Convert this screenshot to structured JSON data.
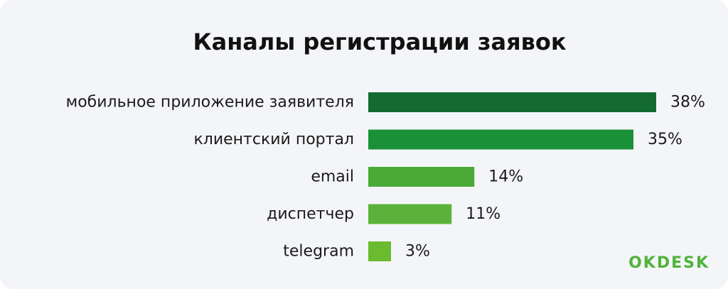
{
  "chart_data": {
    "type": "bar",
    "orientation": "horizontal",
    "title": "Каналы регистрации заявок",
    "categories": [
      "мобильное приложение заявителя",
      "клиентский портал",
      "email",
      "диспетчер",
      "telegram"
    ],
    "values": [
      38,
      35,
      14,
      11,
      3
    ],
    "value_labels": [
      "38%",
      "35%",
      "14%",
      "11%",
      "3%"
    ],
    "colors": [
      "#136b31",
      "#1a9139",
      "#4aaa35",
      "#5bb23a",
      "#6abb2f"
    ],
    "xlim": [
      0,
      38
    ],
    "grid": false,
    "legend": "none"
  },
  "brand": {
    "logo_text": "OKDESK",
    "logo_color": "#4fb33a"
  }
}
